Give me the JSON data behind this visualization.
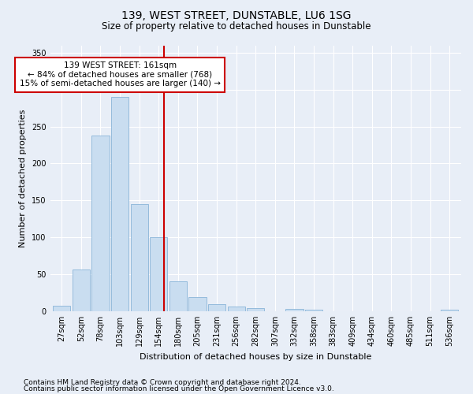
{
  "title": "139, WEST STREET, DUNSTABLE, LU6 1SG",
  "subtitle": "Size of property relative to detached houses in Dunstable",
  "xlabel": "Distribution of detached houses by size in Dunstable",
  "ylabel": "Number of detached properties",
  "categories": [
    "27sqm",
    "52sqm",
    "78sqm",
    "103sqm",
    "129sqm",
    "154sqm",
    "180sqm",
    "205sqm",
    "231sqm",
    "256sqm",
    "282sqm",
    "307sqm",
    "332sqm",
    "358sqm",
    "383sqm",
    "409sqm",
    "434sqm",
    "460sqm",
    "485sqm",
    "511sqm",
    "536sqm"
  ],
  "values": [
    7,
    57,
    238,
    290,
    145,
    100,
    40,
    19,
    10,
    6,
    4,
    0,
    3,
    2,
    0,
    0,
    0,
    0,
    0,
    0,
    2
  ],
  "bar_color": "#c9ddf0",
  "bar_edge_color": "#8ab4d8",
  "vline_color": "#cc0000",
  "annotation_text": "139 WEST STREET: 161sqm\n← 84% of detached houses are smaller (768)\n15% of semi-detached houses are larger (140) →",
  "annotation_box_color": "#ffffff",
  "annotation_box_edgecolor": "#cc0000",
  "annotation_fontsize": 7.5,
  "ylim": [
    0,
    360
  ],
  "yticks": [
    0,
    50,
    100,
    150,
    200,
    250,
    300,
    350
  ],
  "bg_color": "#e8eef7",
  "plot_bg_color": "#e8eef7",
  "footer_line1": "Contains HM Land Registry data © Crown copyright and database right 2024.",
  "footer_line2": "Contains public sector information licensed under the Open Government Licence v3.0.",
  "title_fontsize": 10,
  "subtitle_fontsize": 8.5,
  "xlabel_fontsize": 8,
  "ylabel_fontsize": 8,
  "tick_fontsize": 7,
  "footer_fontsize": 6.5
}
